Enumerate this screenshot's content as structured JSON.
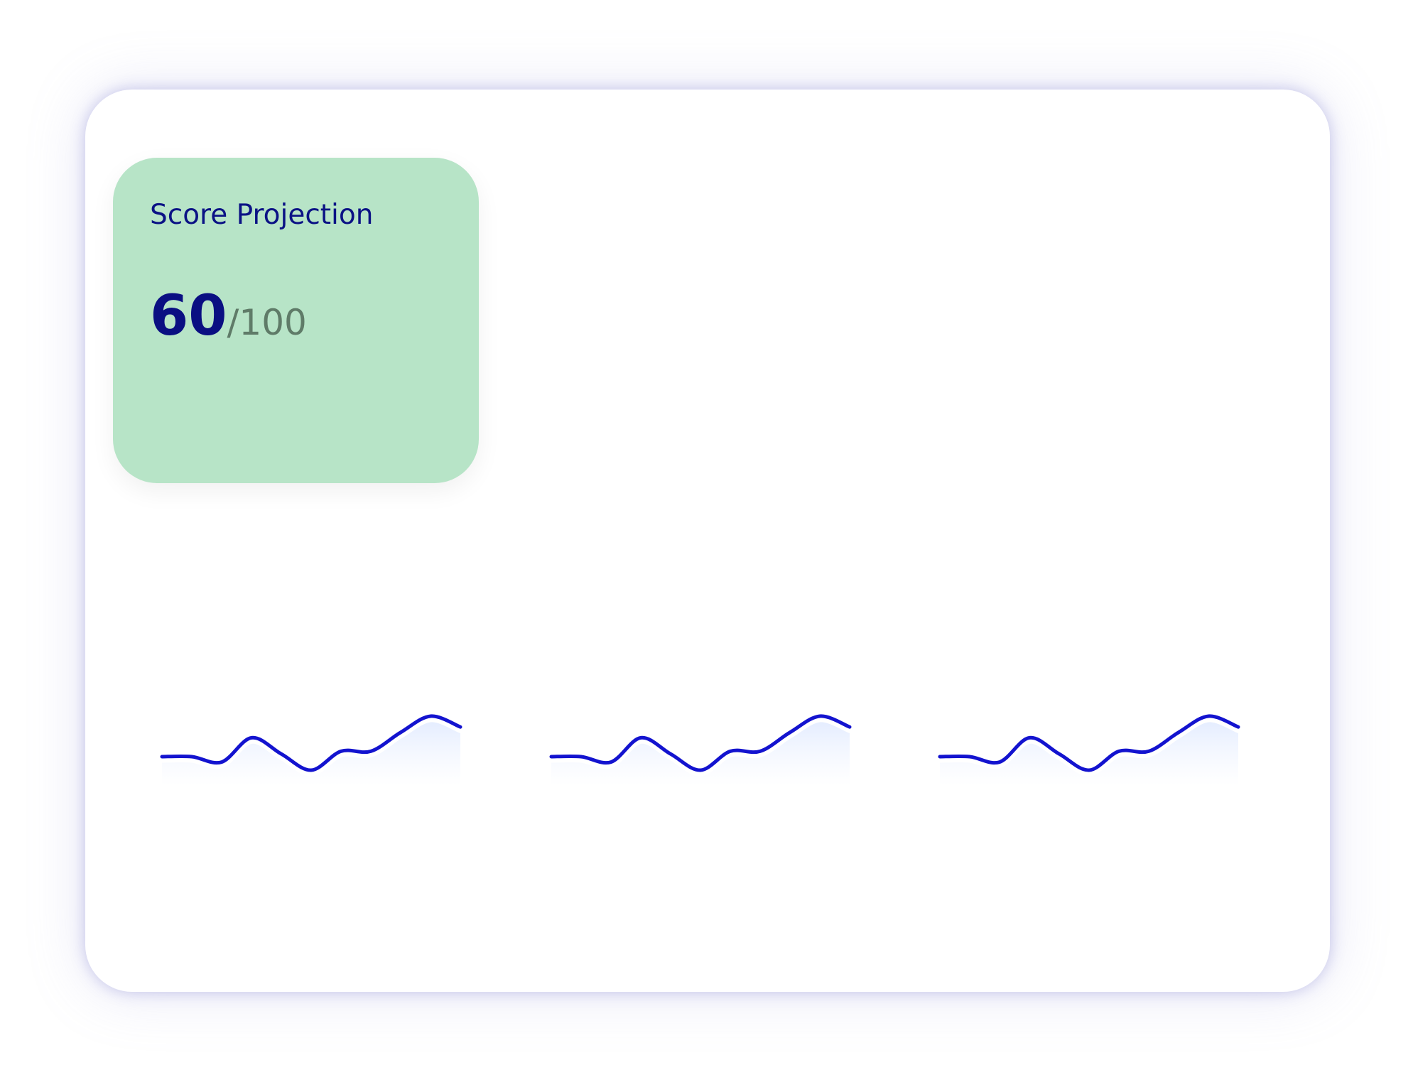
{
  "score_card": {
    "title": "Score Projection",
    "value": "60",
    "max": "/100",
    "background": "#b7e4c7",
    "text_color": "#0b1285"
  },
  "sparklines": {
    "line_color": "#1313cf",
    "fill_color": "#e4eeff",
    "series": [
      [
        13,
        13,
        11,
        20,
        14,
        8,
        15,
        15,
        22,
        28,
        24
      ],
      [
        13,
        13,
        11,
        20,
        14,
        8,
        15,
        15,
        22,
        28,
        24
      ],
      [
        13,
        13,
        11,
        20,
        14,
        8,
        15,
        15,
        22,
        28,
        24
      ]
    ]
  }
}
